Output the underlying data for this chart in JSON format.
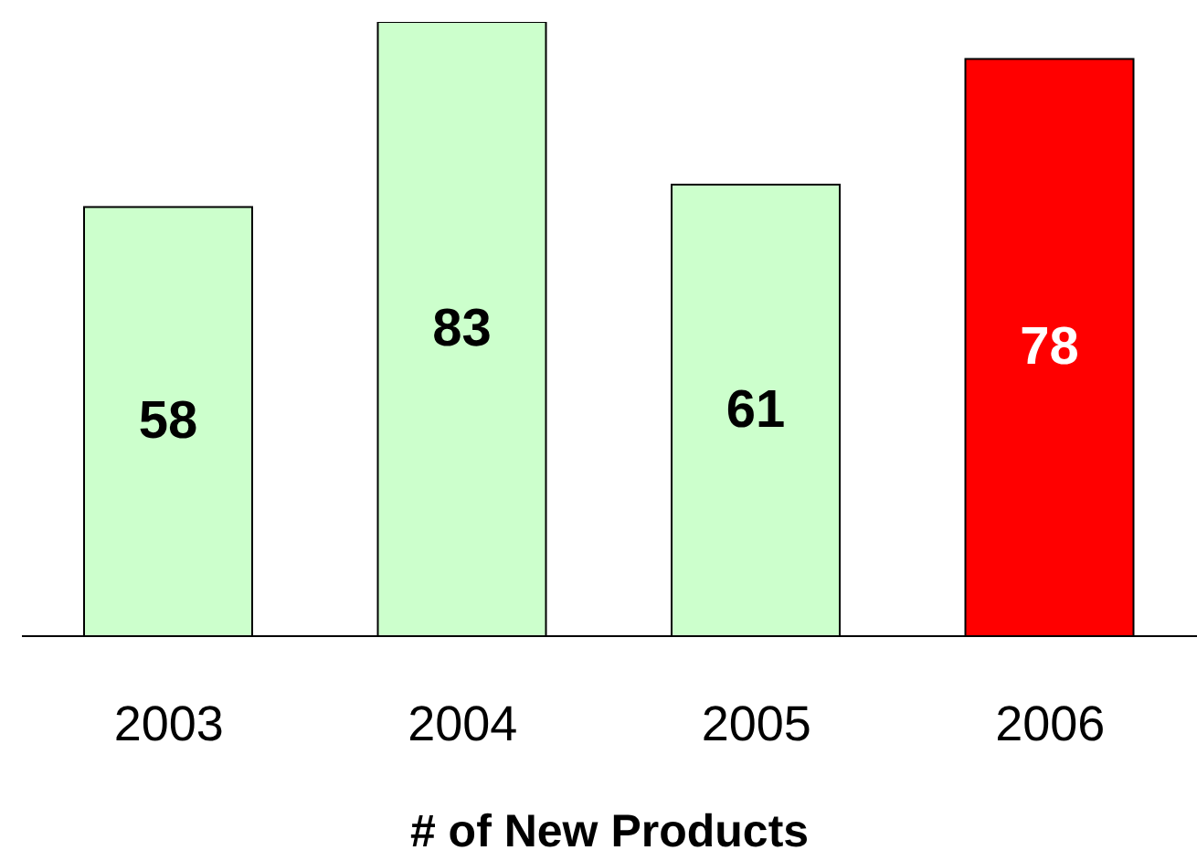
{
  "chart_data": {
    "type": "bar",
    "xlabel": "# of New Products",
    "categories": [
      "2003",
      "2004",
      "2005",
      "2006"
    ],
    "values": [
      58,
      83,
      61,
      78
    ],
    "colors": [
      "#ccffcc",
      "#ccffcc",
      "#ccffcc",
      "#ff0000"
    ],
    "data_labels": true
  }
}
